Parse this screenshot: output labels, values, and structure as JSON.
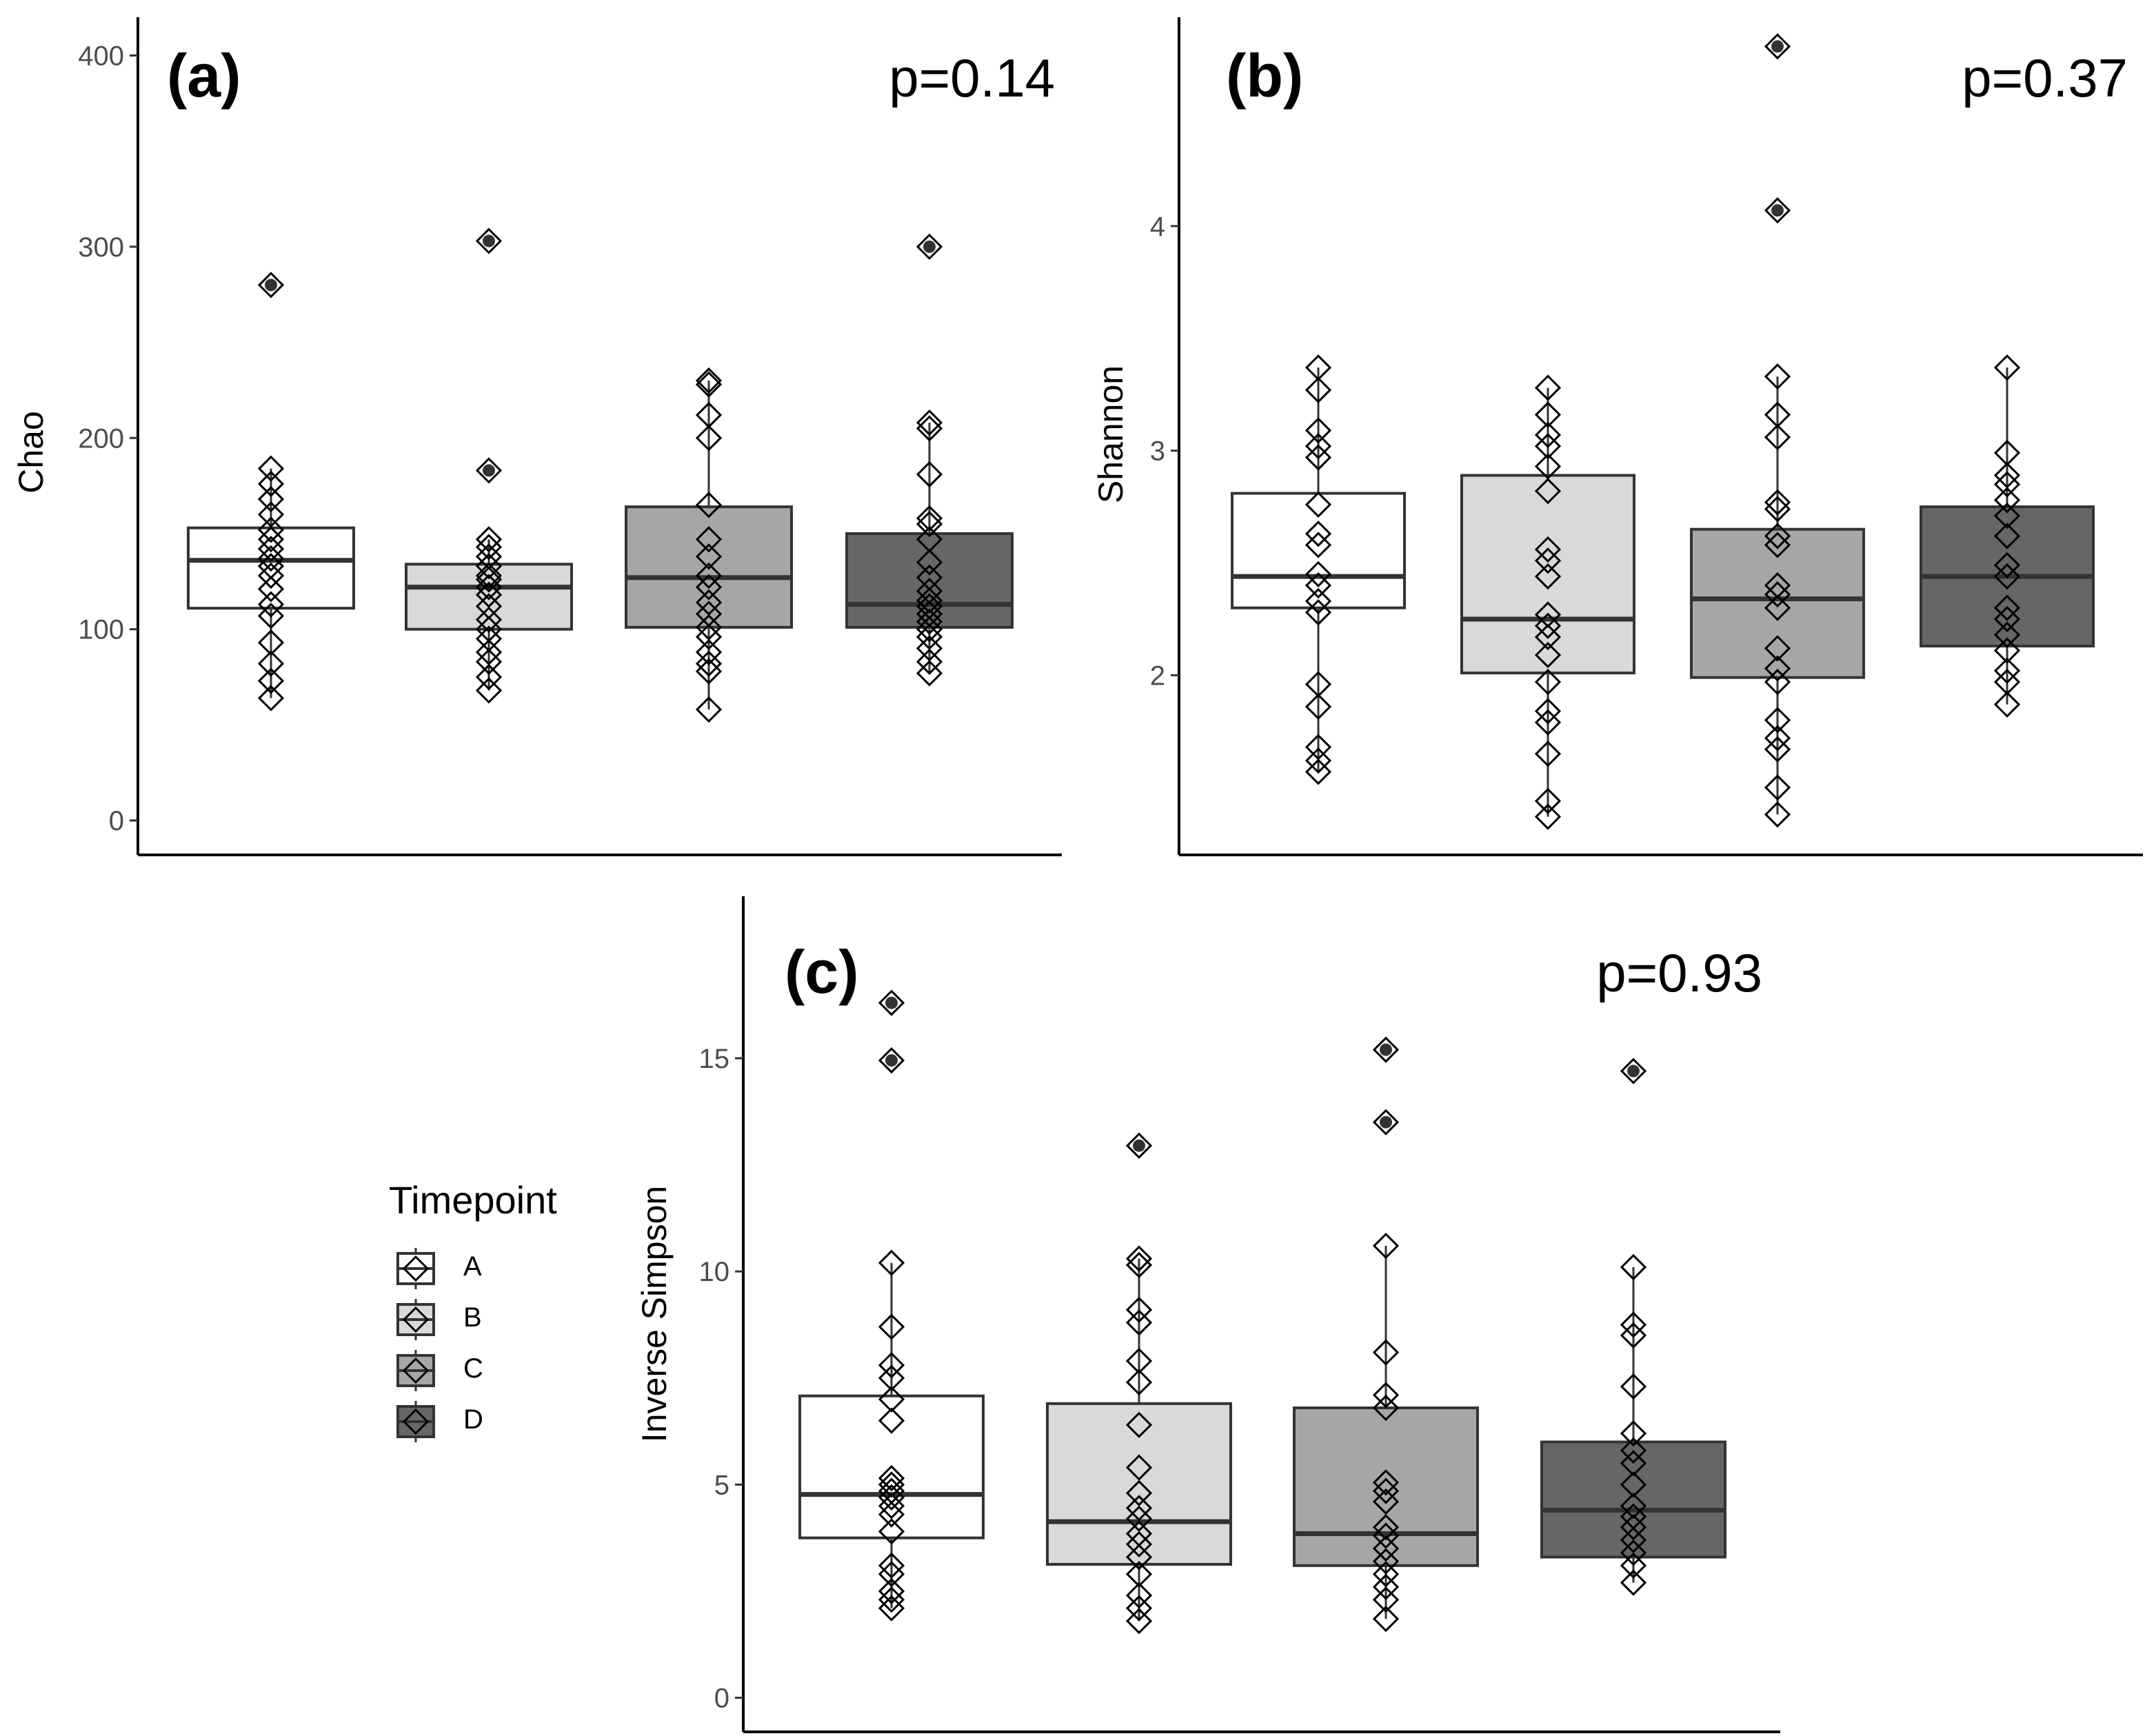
{
  "legend": {
    "title": "Timepoint",
    "items": [
      {
        "label": "A",
        "fill": "#ffffff"
      },
      {
        "label": "B",
        "fill": "#d9d9d9"
      },
      {
        "label": "C",
        "fill": "#a6a6a6"
      },
      {
        "label": "D",
        "fill": "#666666"
      }
    ]
  },
  "chart_data": [
    {
      "type": "box",
      "panel": "(a)",
      "pvalue": "p=0.14",
      "ylabel": "Chao",
      "ylim": [
        -18,
        420
      ],
      "yticks": [
        0,
        100,
        200,
        300,
        400
      ],
      "categories": [
        "A",
        "B",
        "C",
        "D"
      ],
      "boxes": [
        {
          "group": "A",
          "whisker_low": 64,
          "q1": 111,
          "median": 136,
          "q3": 153,
          "whisker_high": 184
        },
        {
          "group": "B",
          "whisker_low": 68,
          "q1": 100,
          "median": 122,
          "q3": 134,
          "whisker_high": 147
        },
        {
          "group": "C",
          "whisker_low": 58,
          "q1": 101,
          "median": 127,
          "q3": 164,
          "whisker_high": 230
        },
        {
          "group": "D",
          "whisker_low": 77,
          "q1": 101,
          "median": 113,
          "q3": 150,
          "whisker_high": 208
        }
      ],
      "outliers": [
        {
          "group": "A",
          "values": [
            280
          ]
        },
        {
          "group": "B",
          "values": [
            303,
            183
          ]
        },
        {
          "group": "C",
          "values": []
        },
        {
          "group": "D",
          "values": [
            300
          ]
        }
      ],
      "points": [
        {
          "group": "A",
          "values": [
            64,
            73,
            82,
            93,
            107,
            113,
            121,
            128,
            133,
            137,
            142,
            147,
            152,
            160,
            168,
            176,
            184
          ]
        },
        {
          "group": "B",
          "values": [
            68,
            75,
            83,
            88,
            95,
            100,
            105,
            112,
            118,
            122,
            126,
            128,
            133,
            138,
            143,
            147
          ]
        },
        {
          "group": "C",
          "values": [
            58,
            78,
            82,
            88,
            96,
            101,
            108,
            114,
            122,
            128,
            138,
            147,
            165,
            200,
            212,
            228,
            230
          ]
        },
        {
          "group": "D",
          "values": [
            77,
            83,
            90,
            96,
            100,
            104,
            108,
            112,
            115,
            120,
            127,
            135,
            147,
            155,
            158,
            181,
            205,
            208
          ]
        }
      ]
    },
    {
      "type": "box",
      "panel": "(b)",
      "pvalue": "p=0.37",
      "ylabel": "Shannon",
      "ylim": [
        1.2,
        4.93
      ],
      "yticks": [
        2,
        3,
        4
      ],
      "categories": [
        "A",
        "B",
        "C",
        "D"
      ],
      "boxes": [
        {
          "group": "A",
          "whisker_low": 1.57,
          "q1": 2.3,
          "median": 2.44,
          "q3": 2.81,
          "whisker_high": 3.37
        },
        {
          "group": "B",
          "whisker_low": 1.37,
          "q1": 2.01,
          "median": 2.25,
          "q3": 2.89,
          "whisker_high": 3.28
        },
        {
          "group": "C",
          "whisker_low": 1.38,
          "q1": 1.99,
          "median": 2.34,
          "q3": 2.65,
          "whisker_high": 3.33
        },
        {
          "group": "D",
          "whisker_low": 1.87,
          "q1": 2.13,
          "median": 2.44,
          "q3": 2.75,
          "whisker_high": 3.37
        }
      ],
      "outliers": [
        {
          "group": "A",
          "values": []
        },
        {
          "group": "B",
          "values": []
        },
        {
          "group": "C",
          "values": [
            4.8,
            4.07
          ]
        },
        {
          "group": "D",
          "values": []
        }
      ],
      "points": [
        {
          "group": "A",
          "values": [
            1.57,
            1.62,
            1.68,
            1.86,
            1.96,
            2.28,
            2.33,
            2.4,
            2.45,
            2.58,
            2.63,
            2.76,
            2.97,
            3.02,
            3.09,
            3.27,
            3.37
          ]
        },
        {
          "group": "B",
          "values": [
            1.37,
            1.44,
            1.65,
            1.79,
            1.84,
            1.97,
            2.09,
            2.17,
            2.22,
            2.27,
            2.44,
            2.51,
            2.56,
            2.82,
            2.93,
            3.02,
            3.07,
            3.16,
            3.28
          ]
        },
        {
          "group": "C",
          "values": [
            1.38,
            1.5,
            1.67,
            1.72,
            1.8,
            1.97,
            2.03,
            2.12,
            2.3,
            2.36,
            2.4,
            2.58,
            2.62,
            2.74,
            2.77,
            3.06,
            3.16,
            3.33
          ]
        },
        {
          "group": "D",
          "values": [
            1.87,
            1.97,
            2.02,
            2.11,
            2.18,
            2.25,
            2.3,
            2.44,
            2.49,
            2.62,
            2.71,
            2.78,
            2.85,
            2.89,
            2.99,
            3.37
          ]
        }
      ]
    },
    {
      "type": "box",
      "panel": "(c)",
      "pvalue": "p=0.93",
      "ylabel": "Inverse Simpson",
      "ylim": [
        -0.8,
        18.8
      ],
      "yticks": [
        0,
        5,
        10,
        15
      ],
      "categories": [
        "A",
        "B",
        "C",
        "D"
      ],
      "boxes": [
        {
          "group": "A",
          "whisker_low": 2.1,
          "q1": 3.75,
          "median": 4.77,
          "q3": 7.08,
          "whisker_high": 10.2
        },
        {
          "group": "B",
          "whisker_low": 1.8,
          "q1": 3.13,
          "median": 4.13,
          "q3": 6.9,
          "whisker_high": 10.3
        },
        {
          "group": "C",
          "whisker_low": 1.85,
          "q1": 3.1,
          "median": 3.85,
          "q3": 6.8,
          "whisker_high": 10.6
        },
        {
          "group": "D",
          "whisker_low": 2.7,
          "q1": 3.3,
          "median": 4.4,
          "q3": 6.0,
          "whisker_high": 10.1
        }
      ],
      "outliers": [
        {
          "group": "A",
          "values": [
            16.3,
            14.95
          ]
        },
        {
          "group": "B",
          "values": [
            12.95
          ]
        },
        {
          "group": "C",
          "values": [
            15.2,
            13.5
          ]
        },
        {
          "group": "D",
          "values": [
            14.7
          ]
        }
      ],
      "points": [
        {
          "group": "A",
          "values": [
            2.1,
            2.3,
            2.5,
            2.9,
            3.1,
            3.9,
            4.3,
            4.5,
            4.7,
            4.85,
            5.0,
            5.15,
            6.5,
            7.0,
            7.5,
            7.8,
            8.7,
            10.2
          ]
        },
        {
          "group": "B",
          "values": [
            1.8,
            2.1,
            2.4,
            2.9,
            3.3,
            3.6,
            3.85,
            4.2,
            4.45,
            4.8,
            5.4,
            6.4,
            7.4,
            7.9,
            8.8,
            9.1,
            10.15,
            10.3
          ]
        },
        {
          "group": "C",
          "values": [
            1.85,
            2.3,
            2.6,
            2.9,
            3.2,
            3.5,
            3.8,
            4.0,
            4.6,
            4.85,
            5.05,
            6.8,
            7.1,
            8.1,
            10.6
          ]
        },
        {
          "group": "D",
          "values": [
            2.7,
            3.1,
            3.4,
            3.7,
            4.0,
            4.25,
            4.5,
            5.0,
            5.5,
            5.8,
            6.2,
            7.3,
            8.5,
            8.75,
            10.1
          ]
        }
      ]
    }
  ]
}
